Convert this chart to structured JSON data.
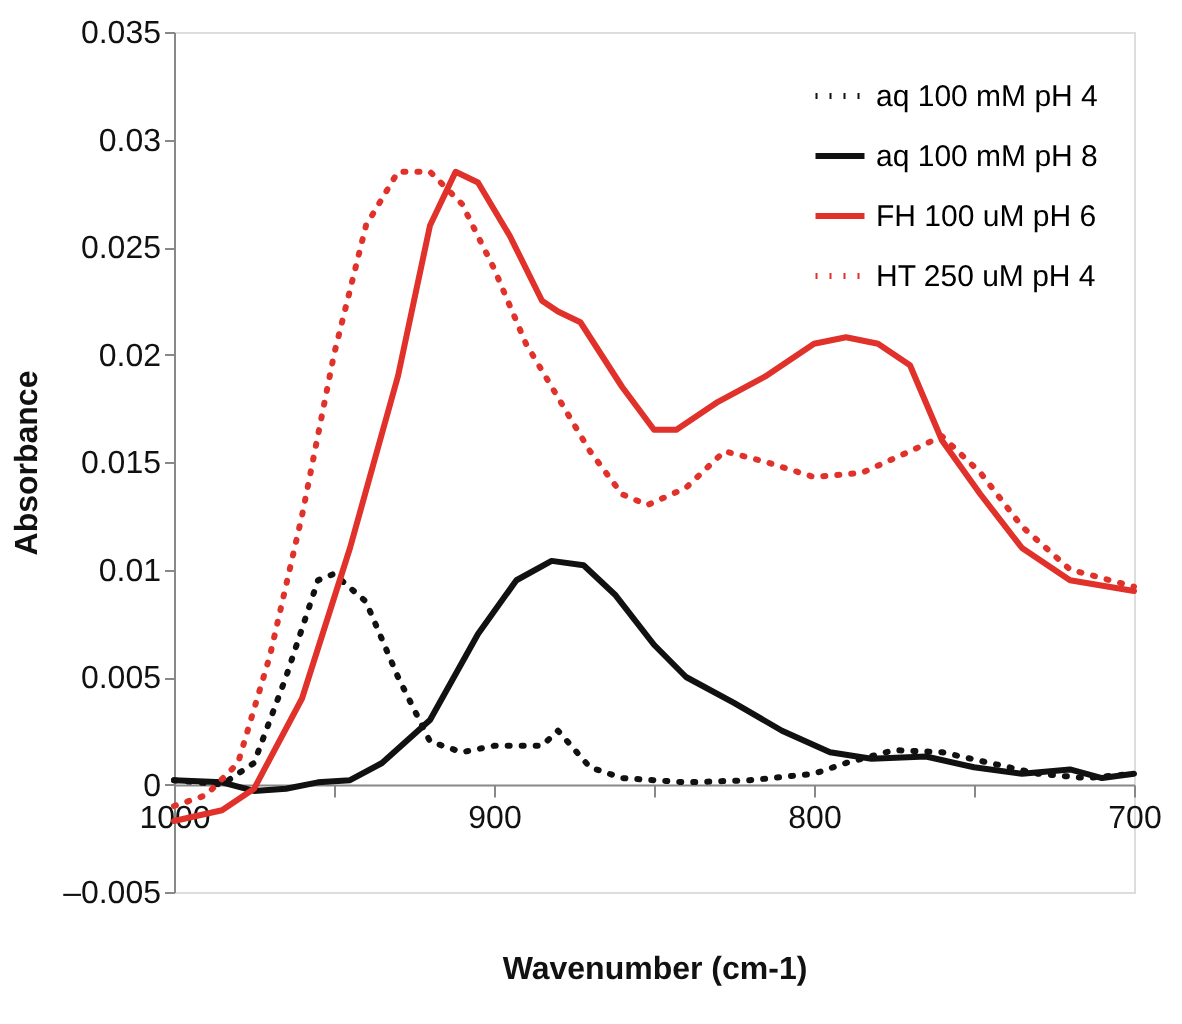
{
  "chart_data": {
    "type": "line",
    "xlabel": "Wavenumber (cm-1)",
    "ylabel": "Absorbance",
    "xlim": [
      1000,
      700
    ],
    "xticks": [
      1000,
      {
        "value": 950,
        "label": null
      },
      900,
      {
        "value": 850,
        "label": null
      },
      800,
      {
        "value": 750,
        "label": null
      },
      700
    ],
    "ylim": [
      -0.005,
      0.035
    ],
    "yticks": [
      {
        "value": -0.005,
        "label": "–0.005"
      },
      0,
      0.005,
      0.01,
      0.015,
      0.02,
      0.025,
      0.03,
      0.035
    ],
    "grid": false,
    "legend": "top right",
    "marker": "none",
    "series": [
      {
        "name": "aq 100 mM pH 4",
        "color": "#111111",
        "line_style": "dotted",
        "x": [
          1000,
          985,
          975,
          965,
          955,
          950,
          940,
          930,
          920,
          910,
          900,
          885,
          880,
          870,
          860,
          840,
          820,
          800,
          790,
          775,
          760,
          745,
          730,
          715,
          700
        ],
        "values": [
          0.0002,
          0,
          0.001,
          0.005,
          0.0095,
          0.0098,
          0.0085,
          0.005,
          0.002,
          0.0015,
          0.0018,
          0.0018,
          0.0025,
          0.0008,
          0.0003,
          0.0001,
          0.0002,
          0.0005,
          0.001,
          0.0016,
          0.0015,
          0.001,
          0.0005,
          0.0003,
          0.0005
        ]
      },
      {
        "name": "aq 100 mM pH 8",
        "color": "#111111",
        "line_style": "solid",
        "x": [
          1000,
          985,
          975,
          965,
          955,
          945,
          935,
          920,
          905,
          893,
          882,
          872,
          862,
          850,
          840,
          825,
          810,
          795,
          782,
          765,
          750,
          735,
          720,
          710,
          700
        ],
        "values": [
          0.0002,
          0.0001,
          -0.0003,
          -0.0002,
          0.0001,
          0.0002,
          0.001,
          0.003,
          0.007,
          0.0095,
          0.0104,
          0.0102,
          0.0088,
          0.0065,
          0.005,
          0.0038,
          0.0025,
          0.0015,
          0.0012,
          0.0013,
          0.0008,
          0.0005,
          0.0007,
          0.0003,
          0.0005
        ]
      },
      {
        "name": "FH 100 uM pH 6",
        "color": "#e0312a",
        "line_style": "solid",
        "x": [
          1000,
          985,
          975,
          960,
          945,
          930,
          920,
          912,
          905,
          895,
          885,
          880,
          873,
          860,
          850,
          843,
          830,
          815,
          800,
          790,
          780,
          770,
          760,
          748,
          735,
          720,
          700
        ],
        "values": [
          -0.0017,
          -0.0012,
          -0.0002,
          0.004,
          0.011,
          0.019,
          0.026,
          0.0285,
          0.028,
          0.0255,
          0.0225,
          0.022,
          0.0215,
          0.0185,
          0.0165,
          0.0165,
          0.0178,
          0.019,
          0.0205,
          0.0208,
          0.0205,
          0.0195,
          0.016,
          0.0135,
          0.011,
          0.0095,
          0.009
        ]
      },
      {
        "name": "HT 250 uM pH 4",
        "color": "#e0312a",
        "line_style": "dotted",
        "x": [
          1000,
          990,
          980,
          970,
          960,
          950,
          940,
          930,
          920,
          910,
          900,
          890,
          880,
          870,
          860,
          852,
          840,
          828,
          815,
          800,
          785,
          770,
          760,
          748,
          735,
          720,
          700
        ],
        "values": [
          -0.001,
          -0.0005,
          0.001,
          0.006,
          0.0125,
          0.02,
          0.026,
          0.0285,
          0.0285,
          0.027,
          0.024,
          0.0205,
          0.018,
          0.0155,
          0.0135,
          0.013,
          0.0138,
          0.0155,
          0.015,
          0.0143,
          0.0145,
          0.0155,
          0.0162,
          0.0145,
          0.012,
          0.01,
          0.0092
        ]
      }
    ]
  }
}
